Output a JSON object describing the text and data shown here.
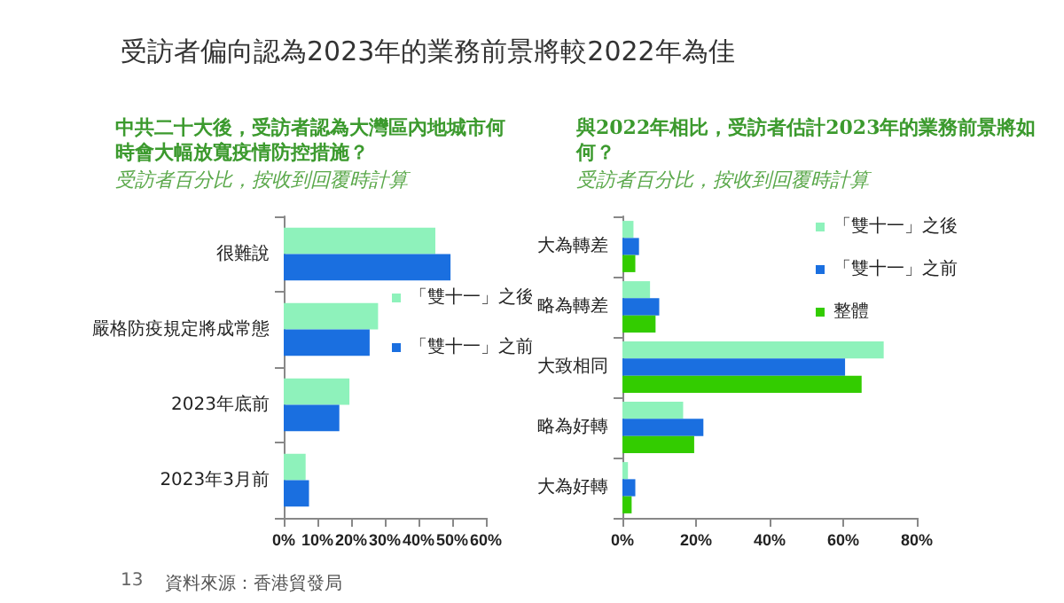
{
  "chart_data": [
    {
      "type": "bar",
      "orientation": "horizontal",
      "title": "中共二十大後，受訪者認為大灣區內地城市何時會大幅放寬疫情防控措施？",
      "subtitle": "受訪者百分比，按收到回覆時計算",
      "annotations": [
        "受訪者偏向認為2023年的業務前景將較2022年為佳",
        "13",
        "資料來源：香港貿發局"
      ],
      "categories": [
        "很難說",
        "嚴格防疫規定將成常態",
        "2023年底前",
        "2023年3月前"
      ],
      "series": [
        {
          "name": "「雙十一」之後",
          "color": "#8ef2bb",
          "values": [
            45,
            28,
            19.5,
            6.5
          ]
        },
        {
          "name": "「雙十一」之前",
          "color": "#1a6fe0",
          "values": [
            49.5,
            25.5,
            16.5,
            7.5
          ]
        }
      ],
      "xlim": [
        0,
        60
      ],
      "xticks": [
        {
          "value": 0,
          "label": "0%"
        },
        {
          "value": 10,
          "label": "10%"
        },
        {
          "value": 20,
          "label": "20%"
        },
        {
          "value": 30,
          "label": "30%"
        },
        {
          "value": 40,
          "label": "40%"
        },
        {
          "value": 50,
          "label": "50%"
        },
        {
          "value": 60,
          "label": "60%"
        }
      ],
      "grid": false,
      "legend": "right"
    },
    {
      "type": "bar",
      "orientation": "horizontal",
      "title": "與2022年相比，受訪者估計2023年的業務前景將如何？",
      "subtitle": "受訪者百分比，按收到回覆時計算",
      "categories": [
        "大為轉差",
        "略為轉差",
        "大致相同",
        "略為好轉",
        "大為好轉"
      ],
      "series": [
        {
          "name": "「雙十一」之後",
          "color": "#8ef2bb",
          "values": [
            3,
            7.5,
            71,
            16.5,
            1.5
          ]
        },
        {
          "name": "「雙十一」之前",
          "color": "#1a6fe0",
          "values": [
            4.5,
            10,
            60.5,
            22,
            3.5
          ]
        },
        {
          "name": "整體",
          "color": "#33cc00",
          "values": [
            3.5,
            9,
            65,
            19.5,
            2.5
          ]
        }
      ],
      "xlim": [
        0,
        80
      ],
      "xticks": [
        {
          "value": 0,
          "label": "0%"
        },
        {
          "value": 20,
          "label": "20%"
        },
        {
          "value": 40,
          "label": "40%"
        },
        {
          "value": 60,
          "label": "60%"
        },
        {
          "value": 80,
          "label": "80%"
        }
      ],
      "grid": false,
      "legend": "top right"
    }
  ]
}
